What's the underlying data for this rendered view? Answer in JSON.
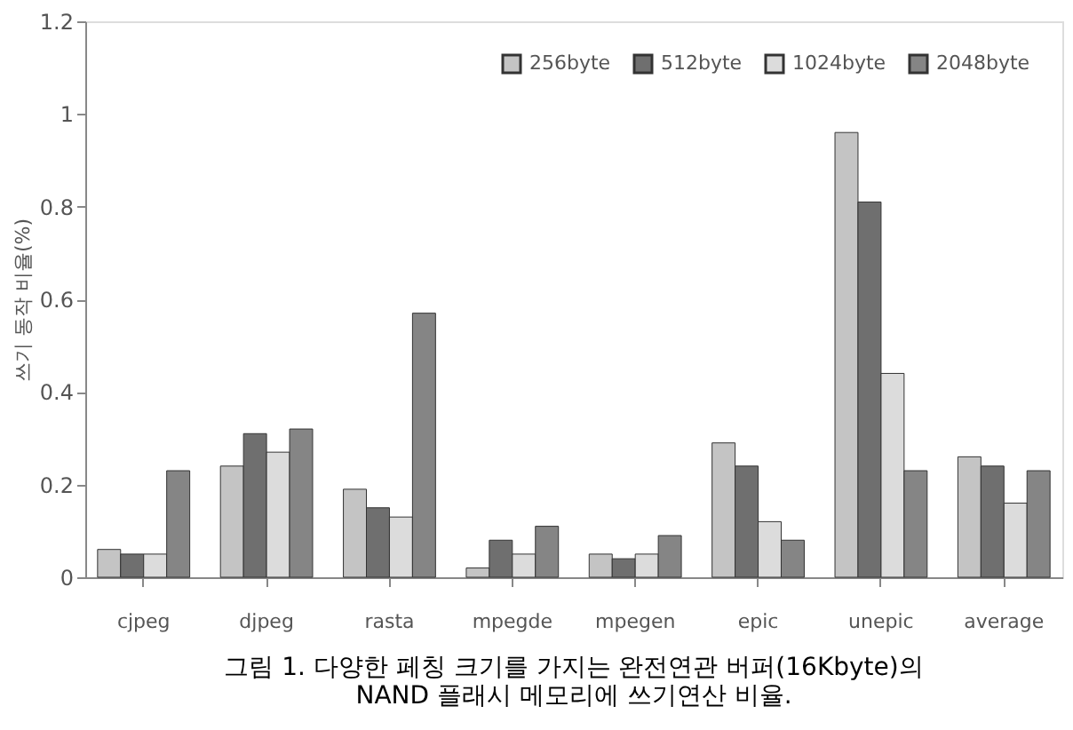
{
  "chart_data": {
    "type": "bar",
    "title": "그림 1. 다양한 페칭 크기를 가지는 완전연관 버퍼(16Kbyte)의\nNAND 플래시 메모리에 쓰기연산 비율.",
    "ylabel": "쓰기 동작 비율(%)",
    "categories": [
      "cjpeg",
      "djpeg",
      "rasta",
      "mpegde",
      "mpegen",
      "epic",
      "unepic",
      "average"
    ],
    "series": [
      {
        "name": "256byte",
        "color": "#c4c4c4",
        "values": [
          0.06,
          0.24,
          0.19,
          0.02,
          0.05,
          0.29,
          0.96,
          0.26
        ]
      },
      {
        "name": "512byte",
        "color": "#6f6f6f",
        "values": [
          0.05,
          0.31,
          0.15,
          0.08,
          0.04,
          0.24,
          0.81,
          0.24
        ]
      },
      {
        "name": "1024byte",
        "color": "#dcdcdc",
        "values": [
          0.05,
          0.27,
          0.13,
          0.05,
          0.05,
          0.12,
          0.44,
          0.16
        ]
      },
      {
        "name": "2048byte",
        "color": "#858585",
        "values": [
          0.23,
          0.32,
          0.57,
          0.11,
          0.09,
          0.08,
          0.23,
          0.23
        ]
      }
    ],
    "ylim": [
      0,
      1.2
    ],
    "yticks": [
      0,
      0.2,
      0.4,
      0.6,
      0.8,
      1,
      1.2
    ],
    "grid": false,
    "legend": "top right"
  }
}
